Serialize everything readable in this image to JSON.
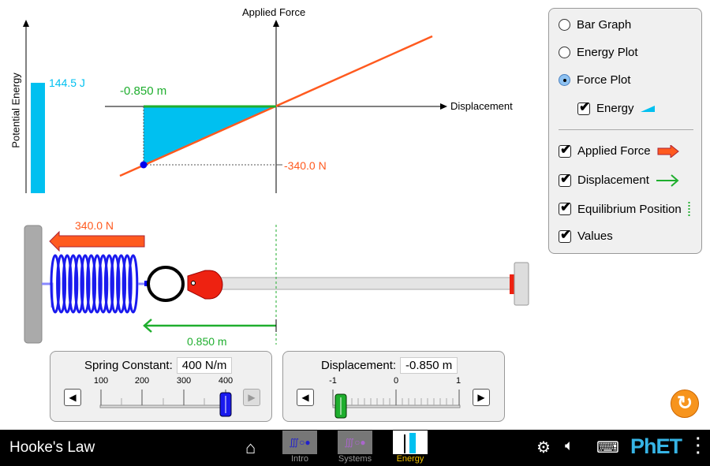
{
  "bar_graph": {
    "axis_label": "Potential Energy",
    "value_label": "144.5 J",
    "color": "#00c0f0"
  },
  "force_plot": {
    "y_axis_label": "Applied Force",
    "x_axis_label": "Displacement",
    "displacement_label": "-0.850 m",
    "force_label": "-340.0 N",
    "line_color": "#ff5a1f",
    "displacement_color": "#1fae2e",
    "energy_color": "#00c0f0"
  },
  "scene": {
    "applied_force_label": "340.0 N",
    "displacement_label": "0.850 m"
  },
  "controls": {
    "options": [
      {
        "label": "Bar Graph",
        "selected": false
      },
      {
        "label": "Energy Plot",
        "selected": false
      },
      {
        "label": "Force Plot",
        "selected": true
      }
    ],
    "energy_checkbox": {
      "label": "Energy",
      "checked": true
    },
    "checkboxes": [
      {
        "label": "Applied Force",
        "checked": true
      },
      {
        "label": "Displacement",
        "checked": true
      },
      {
        "label": "Equilibrium Position",
        "checked": true
      },
      {
        "label": "Values",
        "checked": true
      }
    ]
  },
  "spring_constant": {
    "label": "Spring Constant:",
    "value": "400 N/m",
    "ticks": [
      "100",
      "200",
      "300",
      "400"
    ],
    "current": 400
  },
  "displacement": {
    "label": "Displacement:",
    "value": "-0.850 m",
    "ticks": [
      "-1",
      "0",
      "1"
    ],
    "current": -0.85
  },
  "navbar": {
    "title": "Hooke's Law",
    "screens": [
      {
        "label": "Intro"
      },
      {
        "label": "Systems"
      },
      {
        "label": "Energy",
        "active": true
      }
    ],
    "brand": "PhET"
  }
}
